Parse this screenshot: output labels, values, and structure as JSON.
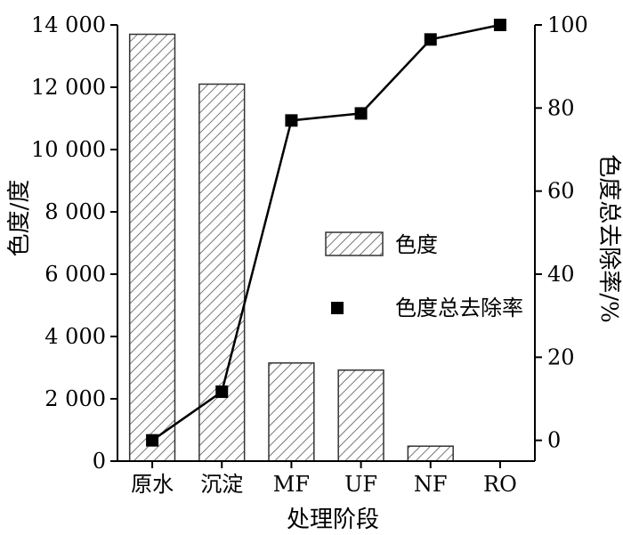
{
  "chart_data": {
    "type": "bar+line",
    "categories": [
      "原水",
      "沉淀",
      "MF",
      "UF",
      "NF",
      "RO"
    ],
    "xlabel": "处理阶段",
    "ylabel_left": "色度/度",
    "ylabel_right": "色度总去除率/%",
    "ylim_left": [
      0,
      14000
    ],
    "ylim_right": [
      -5,
      100
    ],
    "yticks_left": [
      0,
      2000,
      4000,
      6000,
      8000,
      10000,
      12000,
      14000
    ],
    "ytick_labels_left": [
      "0",
      "2 000",
      "4 000",
      "6 000",
      "8 000",
      "10 000",
      "12 000",
      "14 000"
    ],
    "yticks_right": [
      0,
      20,
      40,
      60,
      80,
      100
    ],
    "ytick_labels_right": [
      "0",
      "20",
      "40",
      "60",
      "80",
      "100"
    ],
    "grid": false,
    "legend_position": "center-right",
    "series": [
      {
        "name": "色度",
        "type": "bar",
        "axis": "left",
        "values": [
          13700,
          12100,
          3150,
          2920,
          480,
          null
        ],
        "fill": "hatched"
      },
      {
        "name": "色度总去除率",
        "type": "line",
        "axis": "right",
        "marker": "square",
        "values": [
          0,
          11.7,
          77,
          78.7,
          96.5,
          100
        ]
      }
    ]
  },
  "colors": {
    "bar_fill": "#ffffff",
    "bar_hatch": "#555555",
    "bar_edge": "#333333",
    "line": "#000000",
    "axis": "#000000"
  }
}
